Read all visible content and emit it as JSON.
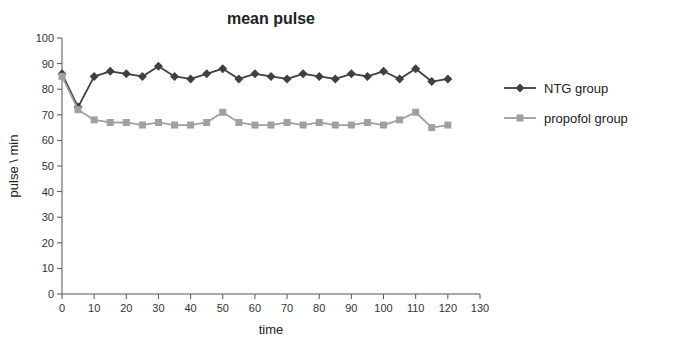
{
  "chart_data": {
    "type": "line",
    "title": "mean pulse",
    "xlabel": "time",
    "ylabel": "pulse \\ min",
    "x": [
      0,
      5,
      10,
      15,
      20,
      25,
      30,
      35,
      40,
      45,
      50,
      55,
      60,
      65,
      70,
      75,
      80,
      85,
      90,
      95,
      100,
      105,
      110,
      115,
      120
    ],
    "series": [
      {
        "name": "NTG group",
        "color": "#404040",
        "marker": "diamond",
        "values": [
          86,
          73,
          85,
          87,
          86,
          85,
          89,
          85,
          84,
          86,
          88,
          84,
          86,
          85,
          84,
          86,
          85,
          84,
          86,
          85,
          87,
          84,
          88,
          83,
          84
        ]
      },
      {
        "name": "propofol group",
        "color": "#a0a0a0",
        "marker": "square",
        "values": [
          85,
          72,
          68,
          67,
          67,
          66,
          67,
          66,
          66,
          67,
          71,
          67,
          66,
          66,
          67,
          66,
          67,
          66,
          66,
          67,
          66,
          68,
          71,
          65,
          66
        ]
      }
    ],
    "xlim": [
      0,
      130
    ],
    "ylim": [
      0,
      100
    ],
    "xticks": [
      0,
      10,
      20,
      30,
      40,
      50,
      60,
      70,
      80,
      90,
      100,
      110,
      120,
      130
    ],
    "yticks": [
      0,
      10,
      20,
      30,
      40,
      50,
      60,
      70,
      80,
      90,
      100
    ],
    "grid": false,
    "legend": "right"
  }
}
